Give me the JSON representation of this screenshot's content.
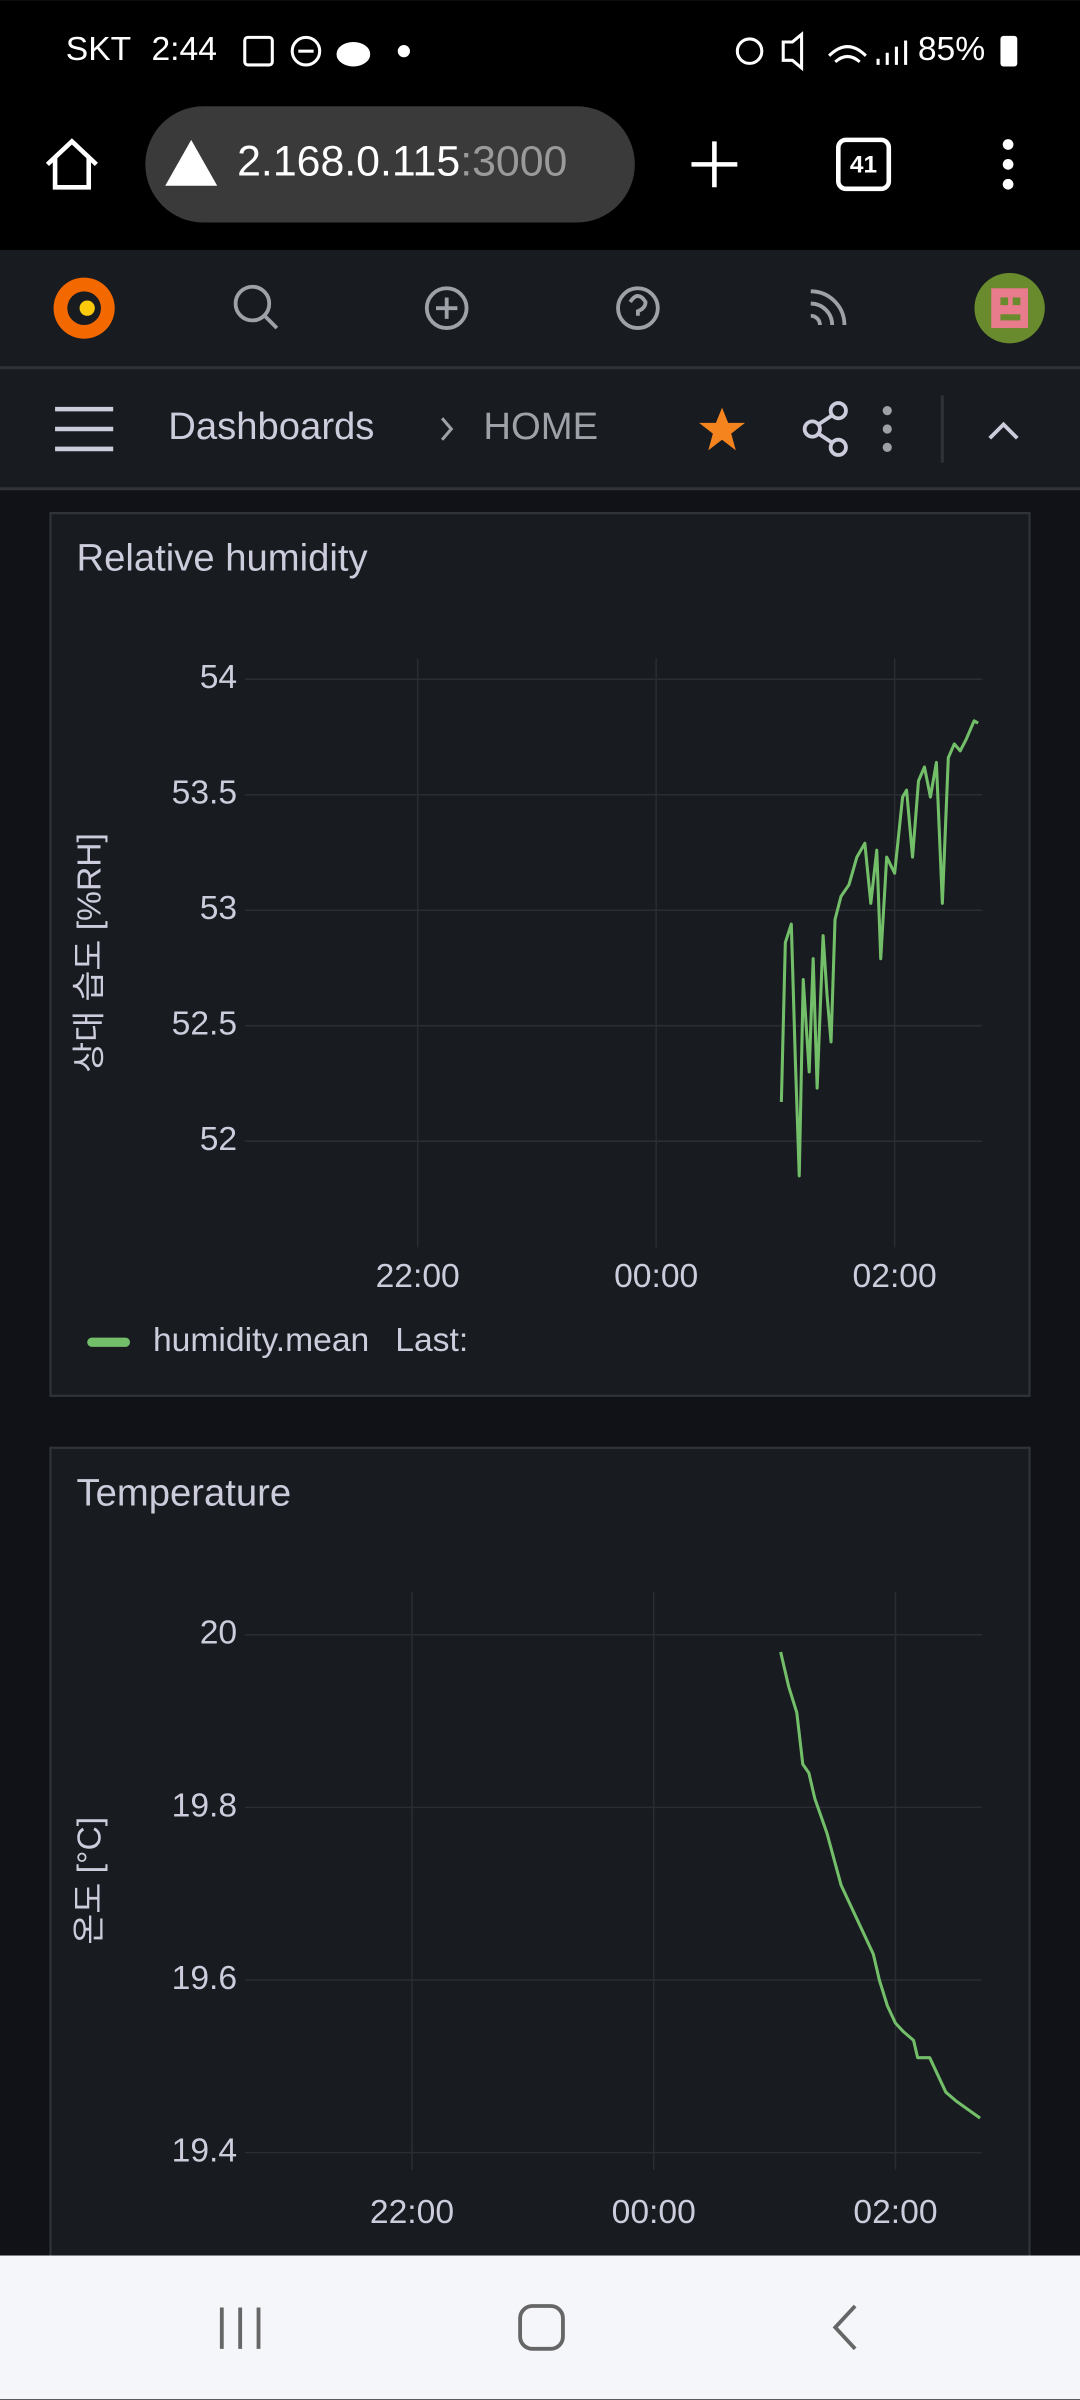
{
  "status_bar": {
    "carrier": "SKT",
    "time": "2:44",
    "battery": "85%"
  },
  "browser": {
    "host": "2.168.0.115",
    "port": ":3000",
    "tab_count": "41"
  },
  "breadcrumb": {
    "parent": "Dashboards",
    "current": "HOME"
  },
  "chart_data": [
    {
      "type": "line",
      "title": "Relative humidity",
      "y_label": "상대 습도 [%RH]",
      "x": [
        "01:03",
        "01:05",
        "01:08",
        "01:10",
        "01:12",
        "01:14",
        "01:17",
        "01:19",
        "01:21",
        "01:24",
        "01:26",
        "01:28",
        "01:30",
        "01:33",
        "01:37",
        "01:41",
        "01:45",
        "01:48",
        "01:51",
        "01:53",
        "01:56",
        "02:00",
        "02:04",
        "02:06",
        "02:09",
        "02:12",
        "02:15",
        "02:18",
        "02:21",
        "02:24",
        "02:27",
        "02:30",
        "02:33",
        "02:36",
        "02:40",
        "02:42"
      ],
      "series": [
        {
          "name": "humidity.mean",
          "color": "#73bf69",
          "values": [
            52.17,
            52.86,
            52.94,
            52.36,
            51.85,
            52.7,
            52.3,
            52.79,
            52.23,
            52.89,
            52.63,
            52.43,
            52.96,
            53.06,
            53.11,
            53.23,
            53.29,
            53.03,
            53.26,
            52.79,
            53.23,
            53.16,
            53.49,
            53.52,
            53.23,
            53.56,
            53.62,
            53.49,
            53.64,
            53.03,
            53.66,
            53.72,
            53.69,
            53.74,
            53.82,
            53.81
          ]
        }
      ],
      "legend_suffix": "Last:",
      "xlim": [
        "20:33",
        "02:44"
      ],
      "xticks": [
        "22:00",
        "00:00",
        "02:00"
      ],
      "ylim": [
        51.54,
        54.09
      ],
      "yticks": [
        52,
        52.5,
        53,
        53.5,
        54
      ],
      "grid": true
    },
    {
      "type": "line",
      "title": "Temperature",
      "y_label": "온도 [°C]",
      "x": [
        "01:03",
        "01:07",
        "01:11",
        "01:14",
        "01:17",
        "01:20",
        "01:26",
        "01:33",
        "01:41",
        "01:49",
        "01:52",
        "01:56",
        "02:00",
        "02:04",
        "02:09",
        "02:11",
        "02:17",
        "02:21",
        "02:25",
        "02:30",
        "02:36",
        "02:42"
      ],
      "series": [
        {
          "color": "#73bf69",
          "values": [
            19.98,
            19.94,
            19.91,
            19.85,
            19.84,
            19.81,
            19.77,
            19.71,
            19.67,
            19.63,
            19.6,
            19.57,
            19.55,
            19.54,
            19.53,
            19.51,
            19.51,
            19.49,
            19.47,
            19.46,
            19.45,
            19.44
          ]
        }
      ],
      "xlim": [
        "20:37",
        "02:43"
      ],
      "xticks": [
        "22:00",
        "00:00",
        "02:00"
      ],
      "ylim": [
        19.38,
        20.05
      ],
      "yticks": [
        19.4,
        19.6,
        19.8,
        20
      ],
      "grid": true
    }
  ]
}
